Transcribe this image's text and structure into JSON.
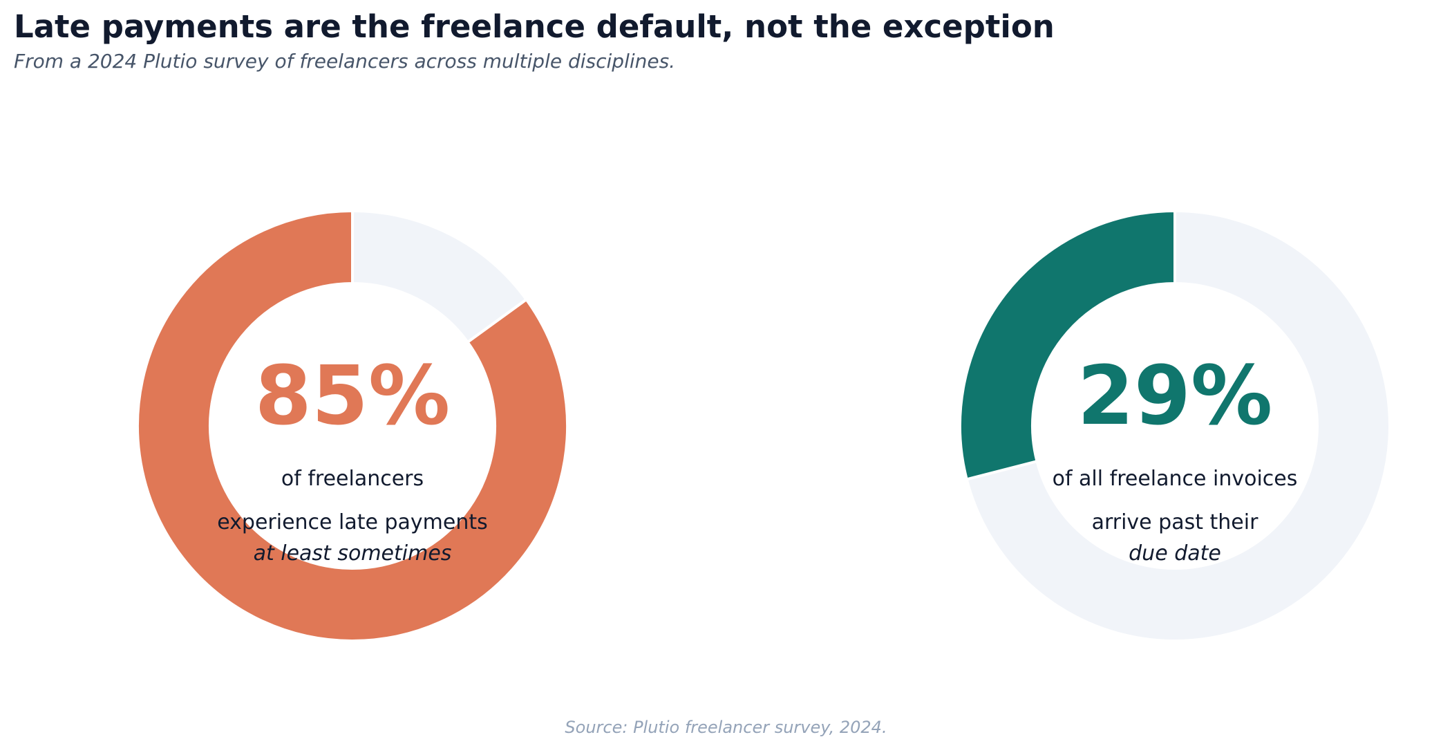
{
  "header": {
    "title": "Late payments are the freelance default, not the exception",
    "subtitle": "From a 2024 Plutio survey of freelancers across multiple disciplines."
  },
  "chart_data": [
    {
      "type": "pie",
      "style": "donut",
      "value_percent": 85,
      "remainder_percent": 15,
      "value_label": "85%",
      "caption_line1": "of freelancers",
      "caption_line2": "experience late payments",
      "caption_line3": "at least sometimes",
      "color": "#e07856",
      "track_color": "#f1f4f9"
    },
    {
      "type": "pie",
      "style": "donut",
      "value_percent": 29,
      "remainder_percent": 71,
      "value_label": "29%",
      "caption_line1": "of all freelance invoices",
      "caption_line2": "arrive past their",
      "caption_line3": "due date",
      "color": "#10766d",
      "track_color": "#f1f4f9"
    }
  ],
  "footer": {
    "source": "Source: Plutio freelancer survey, 2024."
  }
}
